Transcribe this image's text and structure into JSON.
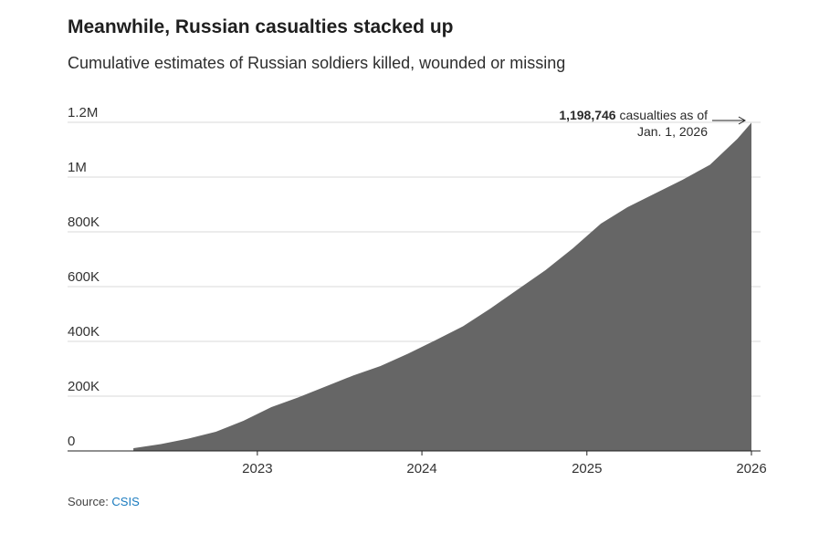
{
  "header": {
    "title": "Meanwhile, Russian casualties stacked up",
    "subtitle": "Cumulative estimates of Russian soldiers killed, wounded or missing"
  },
  "annotation": {
    "value_text": "1,198,746",
    "line1_rest": " casualties as of",
    "line2": "Jan. 1, 2026"
  },
  "source": {
    "label": "Source: ",
    "link_text": "CSIS"
  },
  "colors": {
    "area_fill": "#666666",
    "grid": "#d9d9d9",
    "baseline": "#222222",
    "link": "#1a7bbf"
  },
  "chart_data": {
    "type": "area",
    "title": "Meanwhile, Russian casualties stacked up",
    "subtitle": "Cumulative estimates of Russian soldiers killed, wounded or missing",
    "x": [
      "2022-04-01",
      "2022-06-01",
      "2022-08-01",
      "2022-10-01",
      "2022-12-01",
      "2023-02-01",
      "2023-04-01",
      "2023-06-01",
      "2023-08-01",
      "2023-10-01",
      "2023-12-01",
      "2024-02-01",
      "2024-04-01",
      "2024-06-01",
      "2024-08-01",
      "2024-10-01",
      "2024-12-01",
      "2025-02-01",
      "2025-04-01",
      "2025-06-01",
      "2025-08-01",
      "2025-10-01",
      "2025-12-01",
      "2026-01-01"
    ],
    "values": [
      10000,
      25000,
      45000,
      70000,
      110000,
      160000,
      195000,
      235000,
      275000,
      310000,
      355000,
      405000,
      455000,
      520000,
      590000,
      660000,
      740000,
      830000,
      890000,
      940000,
      990000,
      1045000,
      1140000,
      1198746
    ],
    "ylim": [
      0,
      1200000
    ],
    "yticks": [
      {
        "value": 0,
        "label": "0"
      },
      {
        "value": 200000,
        "label": "200K"
      },
      {
        "value": 400000,
        "label": "400K"
      },
      {
        "value": 600000,
        "label": "600K"
      },
      {
        "value": 800000,
        "label": "800K"
      },
      {
        "value": 1000000,
        "label": "1M"
      },
      {
        "value": 1200000,
        "label": "1.2M"
      }
    ],
    "xticks": [
      {
        "value": "2023-01-01",
        "label": "2023"
      },
      {
        "value": "2024-01-01",
        "label": "2024"
      },
      {
        "value": "2025-01-01",
        "label": "2025"
      },
      {
        "value": "2026-01-01",
        "label": "2026"
      }
    ],
    "xlim": [
      "2021-11-06",
      "2026-01-01"
    ],
    "grid": true,
    "xlabel": "",
    "ylabel": ""
  }
}
